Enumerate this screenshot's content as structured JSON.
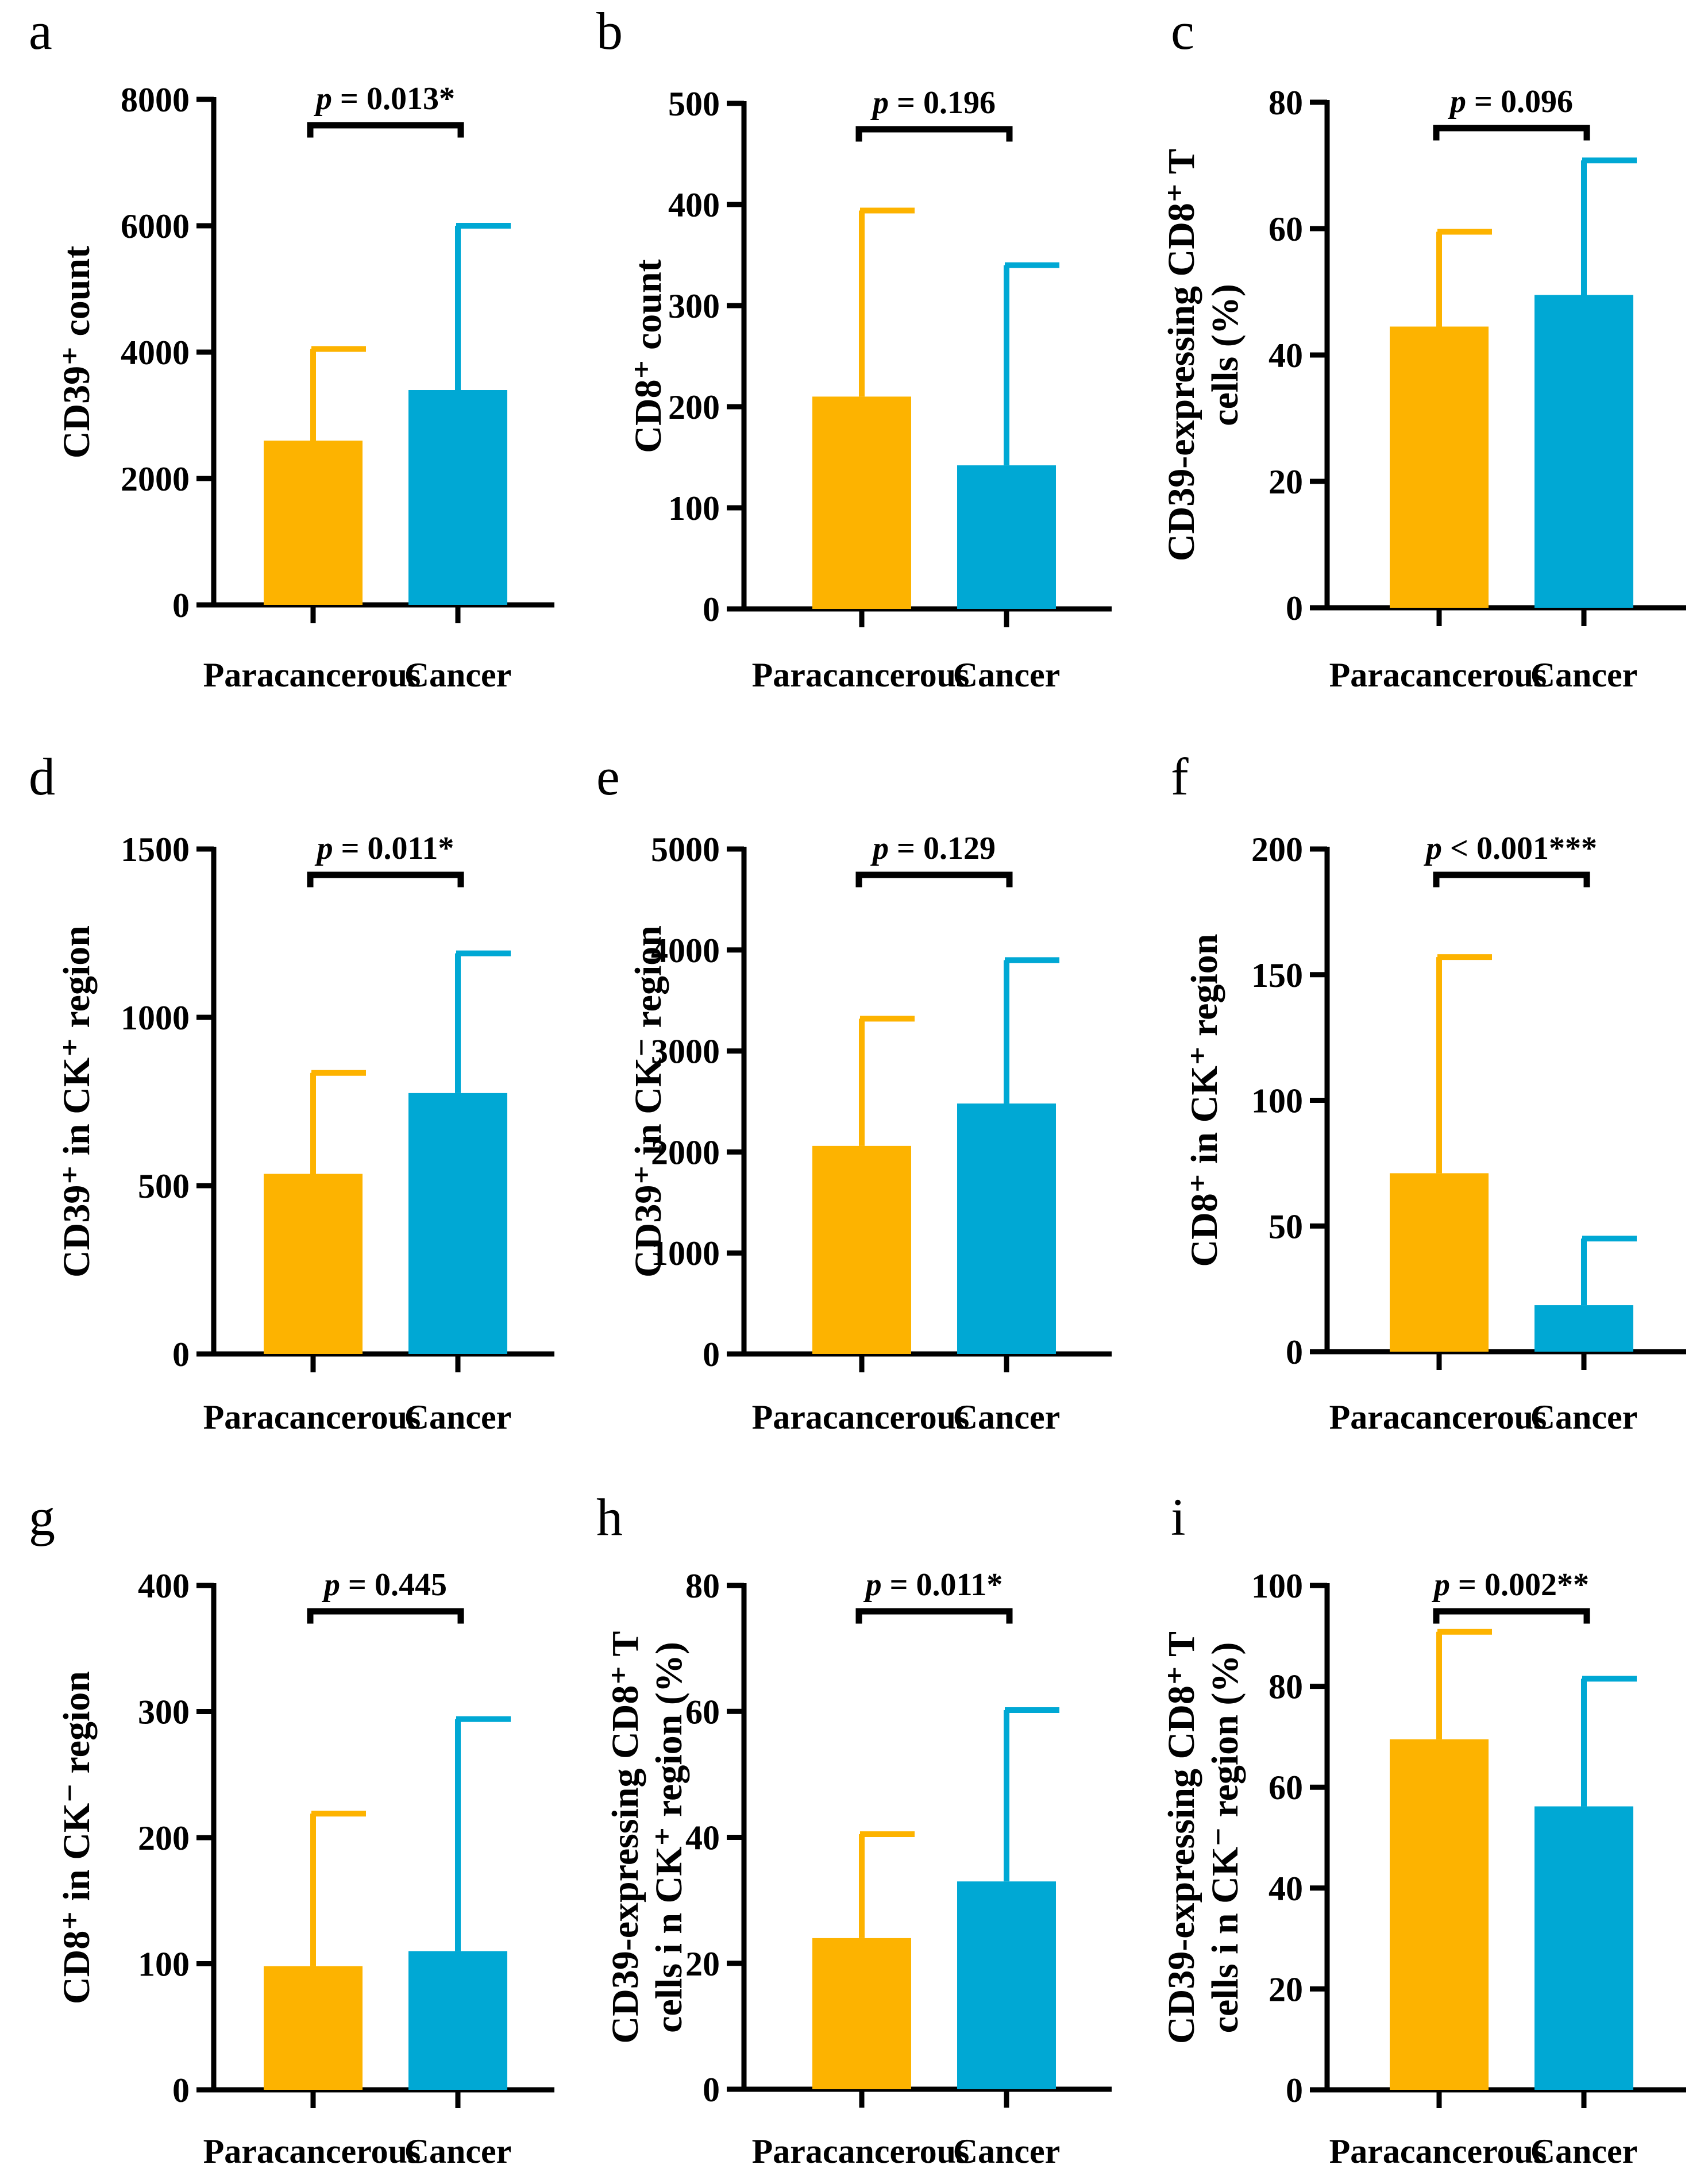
{
  "colors": {
    "paracancerous": "#FDB300",
    "cancer": "#00A8D4",
    "axis": "#000000"
  },
  "chart_data": [
    {
      "panel": "a",
      "type": "bar",
      "categories": [
        "Paracancerous",
        "Cancer"
      ],
      "values": [
        2600,
        3400
      ],
      "errors": [
        4050,
        6000
      ],
      "ylabel_lines": [
        "CD39⁺ count"
      ],
      "ylim": [
        0,
        8000
      ],
      "yticks": [
        "0",
        "2000",
        "4000",
        "6000",
        "8000"
      ],
      "ytick_values": [
        0,
        2000,
        4000,
        6000,
        8000
      ],
      "pvalue": {
        "prefix": "p",
        "text": " = 0.013*"
      }
    },
    {
      "panel": "b",
      "type": "bar",
      "categories": [
        "Paracancerous",
        "Cancer"
      ],
      "values": [
        210,
        142
      ],
      "errors": [
        394,
        340
      ],
      "ylabel_lines": [
        "CD8⁺ count"
      ],
      "ylim": [
        0,
        500
      ],
      "yticks": [
        "0",
        "100",
        "200",
        "300",
        "400",
        "500"
      ],
      "ytick_values": [
        0,
        100,
        200,
        300,
        400,
        500
      ],
      "pvalue": {
        "prefix": "p",
        "text": " = 0.196"
      }
    },
    {
      "panel": "c",
      "type": "bar",
      "categories": [
        "Paracancerous",
        "Cancer"
      ],
      "values": [
        44.5,
        49.5
      ],
      "errors": [
        59.5,
        70.8
      ],
      "ylabel_lines": [
        "CD39-expressing CD8⁺ T",
        "cells (%)"
      ],
      "ylim": [
        0,
        80
      ],
      "yticks": [
        "0",
        "20",
        "40",
        "60",
        "80"
      ],
      "ytick_values": [
        0,
        20,
        40,
        60,
        80
      ],
      "pvalue": {
        "prefix": "p",
        "text": " = 0.096"
      }
    },
    {
      "panel": "d",
      "type": "bar",
      "categories": [
        "Paracancerous",
        "Cancer"
      ],
      "values": [
        535,
        775
      ],
      "errors": [
        835,
        1190
      ],
      "ylabel_lines": [
        "CD39⁺ in CK⁺ region"
      ],
      "ylim": [
        0,
        1500
      ],
      "yticks": [
        "0",
        "500",
        "1000",
        "1500"
      ],
      "ytick_values": [
        0,
        500,
        1000,
        1500
      ],
      "pvalue": {
        "prefix": "p",
        "text": " = 0.011*"
      }
    },
    {
      "panel": "e",
      "type": "bar",
      "categories": [
        "Paracancerous",
        "Cancer"
      ],
      "values": [
        2060,
        2480
      ],
      "errors": [
        3320,
        3900
      ],
      "ylabel_lines": [
        "CD39⁺ in CK⁻ region"
      ],
      "ylim": [
        0,
        5000
      ],
      "yticks": [
        "0",
        "1000",
        "2000",
        "3000",
        "4000",
        "5000"
      ],
      "ytick_values": [
        0,
        1000,
        2000,
        3000,
        4000,
        5000
      ],
      "pvalue": {
        "prefix": "p",
        "text": " = 0.129"
      }
    },
    {
      "panel": "f",
      "type": "bar",
      "categories": [
        "Paracancerous",
        "Cancer"
      ],
      "values": [
        71,
        18.5
      ],
      "errors": [
        157,
        45
      ],
      "ylabel_lines": [
        "CD8⁺ in CK⁺ region"
      ],
      "ylim": [
        0,
        200
      ],
      "yticks": [
        "0",
        "50",
        "100",
        "150",
        "200"
      ],
      "ytick_values": [
        0,
        50,
        100,
        150,
        200
      ],
      "pvalue": {
        "prefix": "p",
        "text": " < 0.001***"
      }
    },
    {
      "panel": "g",
      "type": "bar",
      "categories": [
        "Paracancerous",
        "Cancer"
      ],
      "values": [
        98,
        110
      ],
      "errors": [
        219,
        294
      ],
      "ylabel_lines": [
        "CD8⁺ in CK⁻ region"
      ],
      "ylim": [
        0,
        400
      ],
      "yticks": [
        "0",
        "100",
        "200",
        "300",
        "400"
      ],
      "ytick_values": [
        0,
        100,
        200,
        300,
        400
      ],
      "pvalue": {
        "prefix": "p",
        "text": " = 0.445"
      }
    },
    {
      "panel": "h",
      "type": "bar",
      "categories": [
        "Paracancerous",
        "Cancer"
      ],
      "values": [
        24,
        33
      ],
      "errors": [
        40.5,
        60.2
      ],
      "ylabel_lines": [
        "CD39-expressing CD8⁺ T",
        "cells i n CK⁺ region (%)"
      ],
      "ylim": [
        0,
        80
      ],
      "yticks": [
        "0",
        "20",
        "40",
        "60",
        "80"
      ],
      "ytick_values": [
        0,
        20,
        40,
        60,
        80
      ],
      "pvalue": {
        "prefix": "p",
        "text": " = 0.011*"
      }
    },
    {
      "panel": "i",
      "type": "bar",
      "categories": [
        "Paracancerous",
        "Cancer"
      ],
      "values": [
        69.5,
        56.2
      ],
      "errors": [
        90.8,
        81.5
      ],
      "ylabel_lines": [
        "CD39-expressing CD8⁺ T",
        "cells i n CK⁻ region (%)"
      ],
      "ylim": [
        0,
        100
      ],
      "yticks": [
        "0",
        "20",
        "40",
        "60",
        "80",
        "100"
      ],
      "ytick_values": [
        0,
        20,
        40,
        60,
        80,
        100
      ],
      "pvalue": {
        "prefix": "p",
        "text": " = 0.002**"
      }
    }
  ]
}
